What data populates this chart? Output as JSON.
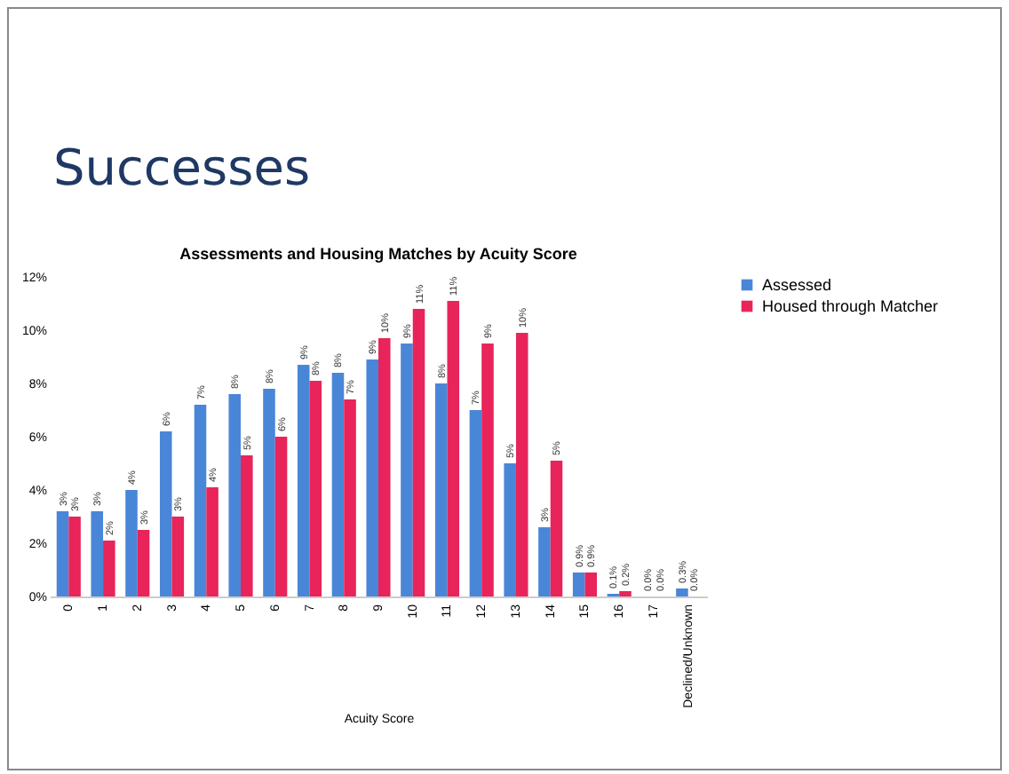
{
  "chart_data": {
    "type": "bar",
    "title": "Successes",
    "subtitle": "Assessments and Housing Matches by Acuity Score",
    "xlabel": "Acuity Score",
    "categories": [
      "0",
      "1",
      "2",
      "3",
      "4",
      "5",
      "6",
      "7",
      "8",
      "9",
      "10",
      "11",
      "12",
      "13",
      "14",
      "15",
      "16",
      "17",
      "Declined/Unknown"
    ],
    "series": [
      {
        "name": "Assessed",
        "color": "#4a86d8",
        "values": [
          3.2,
          3.2,
          4.0,
          6.2,
          7.2,
          7.6,
          7.8,
          8.7,
          8.4,
          8.9,
          9.5,
          8.0,
          7.0,
          5.0,
          2.6,
          0.9,
          0.1,
          0,
          0.3
        ],
        "value_labels": [
          "3%",
          "3%",
          "4%",
          "6%",
          "7%",
          "8%",
          "8%",
          "9%",
          "8%",
          "9%",
          "9%",
          "8%",
          "7%",
          "5%",
          "3%",
          "0.9%",
          "0.1%",
          "0.0%",
          "0.3%"
        ]
      },
      {
        "name": "Housed through Matcher",
        "color": "#e8245a",
        "values": [
          3.0,
          2.1,
          2.5,
          3.0,
          4.1,
          5.3,
          6.0,
          8.1,
          7.4,
          9.7,
          10.8,
          11.1,
          9.5,
          9.9,
          5.1,
          0.9,
          0.2,
          0,
          0
        ],
        "value_labels": [
          "3%",
          "2%",
          "3%",
          "3%",
          "4%",
          "5%",
          "6%",
          "8%",
          "7%",
          "10%",
          "11%",
          "11%",
          "9%",
          "10%",
          "5%",
          "0.9%",
          "0.2%",
          "0.0%",
          "0.0%"
        ]
      }
    ],
    "ylim": [
      0,
      12
    ],
    "yticks": [
      {
        "value": 0,
        "label": "0%"
      },
      {
        "value": 2,
        "label": "2%"
      },
      {
        "value": 4,
        "label": "4%"
      },
      {
        "value": 6,
        "label": "6%"
      },
      {
        "value": 8,
        "label": "8%"
      },
      {
        "value": 10,
        "label": "10%"
      },
      {
        "value": 12,
        "label": "12%"
      }
    ],
    "grid": false,
    "legend": "right"
  }
}
